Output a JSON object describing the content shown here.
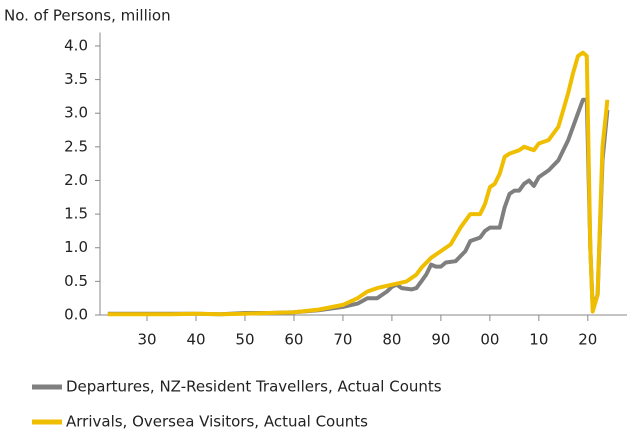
{
  "chart_data": {
    "type": "line",
    "y_label": "No. of Persons, million",
    "xlim": [
      1920.4,
      2028
    ],
    "xticks": [
      {
        "value": 1930,
        "label": "30"
      },
      {
        "value": 1940,
        "label": "40"
      },
      {
        "value": 1950,
        "label": "50"
      },
      {
        "value": 1960,
        "label": "60"
      },
      {
        "value": 1970,
        "label": "70"
      },
      {
        "value": 1980,
        "label": "80"
      },
      {
        "value": 1990,
        "label": "90"
      },
      {
        "value": 2000,
        "label": "00"
      },
      {
        "value": 2010,
        "label": "10"
      },
      {
        "value": 2020,
        "label": "20"
      }
    ],
    "ylim": [
      0,
      4.2
    ],
    "yticks": [
      {
        "value": 0,
        "label": "0.0"
      },
      {
        "value": 0.5,
        "label": "0.5"
      },
      {
        "value": 1,
        "label": "1.0"
      },
      {
        "value": 1.5,
        "label": "1.5"
      },
      {
        "value": 2,
        "label": "2.0"
      },
      {
        "value": 2.5,
        "label": "2.5"
      },
      {
        "value": 3,
        "label": "3.0"
      },
      {
        "value": 3.5,
        "label": "3.5"
      },
      {
        "value": 4,
        "label": "4.0"
      }
    ],
    "grid": false,
    "series": [
      {
        "name": "Departures, NZ-Resident Travellers, Actual Counts",
        "color": "#7f7f7f",
        "x": [
          1922,
          1930,
          1935,
          1940,
          1945,
          1950,
          1955,
          1960,
          1965,
          1970,
          1973,
          1975,
          1977,
          1979,
          1980,
          1981,
          1982,
          1984,
          1985,
          1986,
          1987,
          1988,
          1989,
          1990,
          1991,
          1993,
          1995,
          1996,
          1998,
          1999,
          2000,
          2002,
          2003,
          2004,
          2005,
          2006,
          2007,
          2008,
          2009,
          2010,
          2012,
          2014,
          2016,
          2017,
          2018,
          2019,
          2019.8,
          2020.5,
          2021,
          2022,
          2023,
          2024
        ],
        "values": [
          0.02,
          0.02,
          0.02,
          0.02,
          0.01,
          0.03,
          0.03,
          0.04,
          0.07,
          0.12,
          0.17,
          0.25,
          0.25,
          0.35,
          0.42,
          0.45,
          0.4,
          0.38,
          0.4,
          0.5,
          0.6,
          0.75,
          0.72,
          0.72,
          0.78,
          0.8,
          0.95,
          1.1,
          1.15,
          1.25,
          1.3,
          1.3,
          1.6,
          1.8,
          1.85,
          1.85,
          1.95,
          2.0,
          1.92,
          2.05,
          2.15,
          2.3,
          2.6,
          2.8,
          3.0,
          3.2,
          3.2,
          1.0,
          0.1,
          0.3,
          2.3,
          3.05
        ]
      },
      {
        "name": "Arrivals, Oversea Visitors, Actual Counts",
        "color": "#f0be00",
        "x": [
          1922,
          1930,
          1935,
          1940,
          1945,
          1950,
          1955,
          1960,
          1965,
          1970,
          1973,
          1975,
          1977,
          1980,
          1983,
          1985,
          1986,
          1988,
          1990,
          1992,
          1994,
          1996,
          1997,
          1998,
          1999,
          2000,
          2001,
          2002,
          2003,
          2004,
          2006,
          2007,
          2009,
          2010,
          2012,
          2014,
          2015,
          2016,
          2017,
          2018,
          2019,
          2019.8,
          2020.5,
          2021,
          2022,
          2023,
          2024
        ],
        "values": [
          0.01,
          0.01,
          0.01,
          0.02,
          0.01,
          0.02,
          0.03,
          0.04,
          0.08,
          0.15,
          0.25,
          0.35,
          0.4,
          0.45,
          0.5,
          0.6,
          0.7,
          0.85,
          0.95,
          1.05,
          1.3,
          1.5,
          1.5,
          1.5,
          1.65,
          1.9,
          1.95,
          2.1,
          2.35,
          2.4,
          2.45,
          2.5,
          2.45,
          2.55,
          2.6,
          2.8,
          3.05,
          3.3,
          3.6,
          3.85,
          3.9,
          3.85,
          1.0,
          0.05,
          0.3,
          2.5,
          3.2
        ]
      }
    ]
  }
}
